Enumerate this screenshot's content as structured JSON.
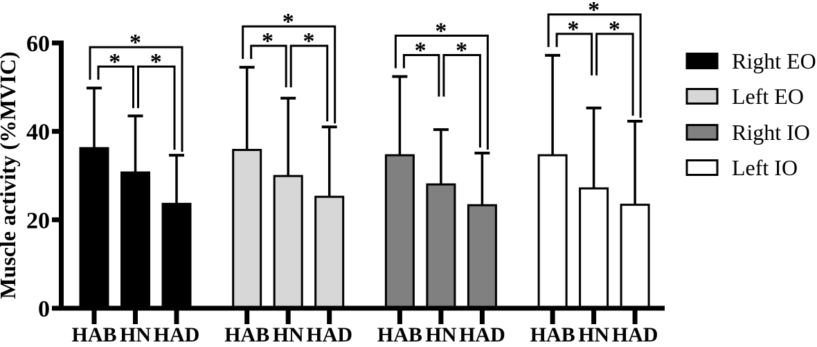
{
  "chart_data": {
    "type": "bar",
    "title": "",
    "xlabel": "",
    "ylabel": "Muscle activity (%MVIC)",
    "ylim": [
      0,
      60
    ],
    "yticks": [
      0,
      20,
      40,
      60
    ],
    "grid": false,
    "legend_position": "right",
    "error_bars": "upper standard deviation whiskers with caps",
    "categories": [
      "HAB",
      "HN",
      "HAD"
    ],
    "series": [
      {
        "name": "Right EO",
        "fill": "#000000",
        "values": [
          36.2,
          30.7,
          23.6
        ],
        "sd": [
          13.6,
          12.8,
          11.0
        ]
      },
      {
        "name": "Left EO",
        "fill": "#d7d7d7",
        "values": [
          35.8,
          29.9,
          25.2
        ],
        "sd": [
          18.7,
          17.6,
          15.8
        ]
      },
      {
        "name": "Right IO",
        "fill": "#808080",
        "values": [
          34.6,
          28.0,
          23.3
        ],
        "sd": [
          17.8,
          12.4,
          11.8
        ]
      },
      {
        "name": "Left IO",
        "fill": "#ffffff",
        "values": [
          34.6,
          27.1,
          23.4
        ],
        "sd": [
          22.6,
          18.2,
          18.9
        ]
      }
    ],
    "significance": {
      "marker": "*",
      "note": "brackets repeated above every group",
      "comparisons": [
        {
          "pair": [
            "HAB",
            "HN"
          ],
          "marker": "*",
          "level": "lower"
        },
        {
          "pair": [
            "HN",
            "HAD"
          ],
          "marker": "*",
          "level": "lower"
        },
        {
          "pair": [
            "HAB",
            "HAD"
          ],
          "marker": "*",
          "level": "upper"
        }
      ]
    },
    "colors": {
      "axis": "#000000",
      "bar_outline": "#000000",
      "background": "#ffffff"
    }
  }
}
